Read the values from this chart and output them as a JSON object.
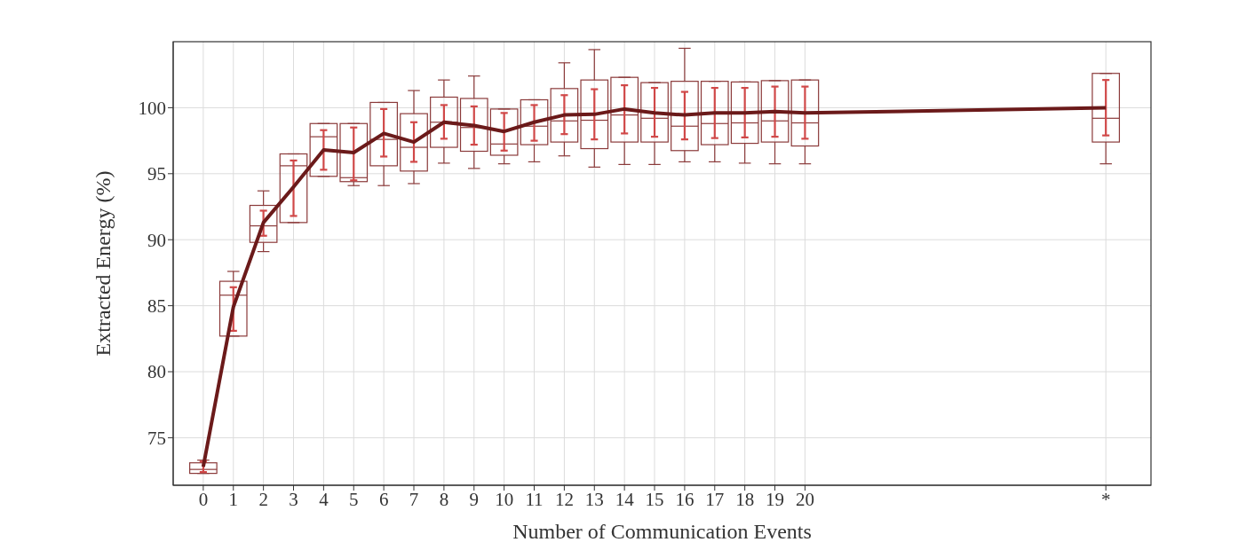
{
  "chart_data": {
    "type": "box",
    "xlabel": "Number of Communication Events",
    "ylabel": "Extracted Energy (%)",
    "x": [
      0,
      1,
      2,
      3,
      4,
      5,
      6,
      7,
      8,
      9,
      10,
      11,
      12,
      13,
      14,
      15,
      16,
      17,
      18,
      19,
      20,
      30
    ],
    "xlim": [
      -1,
      31.5
    ],
    "xticks": [
      0,
      1,
      2,
      3,
      4,
      5,
      6,
      7,
      8,
      9,
      10,
      11,
      12,
      13,
      14,
      15,
      16,
      17,
      18,
      19,
      20,
      {
        "value": 30,
        "label": "*"
      }
    ],
    "ylim": [
      71.4,
      105
    ],
    "yticks": [
      75,
      80,
      85,
      90,
      95,
      100
    ],
    "grid": true,
    "series": [
      {
        "type": "box",
        "color": "#8b3a3a",
        "boxes": [
          {
            "low": 72.3,
            "q1": 72.3,
            "median": 72.6,
            "q3": 73.1,
            "high": 73.3
          },
          {
            "low": 82.7,
            "q1": 82.7,
            "median": 85.8,
            "q3": 86.85,
            "high": 87.6
          },
          {
            "low": 89.1,
            "q1": 89.8,
            "median": 91.05,
            "q3": 92.6,
            "high": 93.7
          },
          {
            "low": 91.3,
            "q1": 91.3,
            "median": 95.6,
            "q3": 96.5,
            "high": 96.5
          },
          {
            "low": 94.8,
            "q1": 94.8,
            "median": 97.8,
            "q3": 98.8,
            "high": 98.8
          },
          {
            "low": 94.1,
            "q1": 94.4,
            "median": 94.7,
            "q3": 98.8,
            "high": 98.8
          },
          {
            "low": 94.1,
            "q1": 95.6,
            "median": 97.6,
            "q3": 100.4,
            "high": 100.4
          },
          {
            "low": 94.25,
            "q1": 95.2,
            "median": 97.0,
            "q3": 99.55,
            "high": 101.3
          },
          {
            "low": 95.8,
            "q1": 97.0,
            "median": 98.9,
            "q3": 100.8,
            "high": 102.1
          },
          {
            "low": 95.4,
            "q1": 96.7,
            "median": 98.5,
            "q3": 100.7,
            "high": 102.4
          },
          {
            "low": 95.75,
            "q1": 96.4,
            "median": 97.25,
            "q3": 99.9,
            "high": 99.9
          },
          {
            "low": 95.9,
            "q1": 97.2,
            "median": 98.6,
            "q3": 100.6,
            "high": 100.6
          },
          {
            "low": 96.35,
            "q1": 97.4,
            "median": 99.0,
            "q3": 101.45,
            "high": 103.4
          },
          {
            "low": 95.5,
            "q1": 96.9,
            "median": 99.05,
            "q3": 102.1,
            "high": 104.4
          },
          {
            "low": 95.7,
            "q1": 97.4,
            "median": 99.45,
            "q3": 102.3,
            "high": 102.3
          },
          {
            "low": 95.7,
            "q1": 97.4,
            "median": 99.2,
            "q3": 101.9,
            "high": 101.9
          },
          {
            "low": 95.9,
            "q1": 96.75,
            "median": 98.6,
            "q3": 102.0,
            "high": 104.5
          },
          {
            "low": 95.9,
            "q1": 97.2,
            "median": 98.8,
            "q3": 102.0,
            "high": 102.0
          },
          {
            "low": 95.8,
            "q1": 97.3,
            "median": 98.85,
            "q3": 101.95,
            "high": 101.95
          },
          {
            "low": 95.75,
            "q1": 97.4,
            "median": 99.0,
            "q3": 102.05,
            "high": 102.05
          },
          {
            "low": 95.75,
            "q1": 97.1,
            "median": 98.85,
            "q3": 102.1,
            "high": 102.1
          },
          {
            "low": 95.75,
            "q1": 97.4,
            "median": 99.2,
            "q3": 102.6,
            "high": 102.6
          }
        ]
      },
      {
        "type": "line",
        "color": "#6b1a1a",
        "values": [
          72.8,
          84.9,
          91.3,
          94.0,
          96.8,
          96.6,
          98.05,
          97.4,
          98.9,
          98.65,
          98.2,
          98.9,
          99.45,
          99.5,
          99.9,
          99.6,
          99.45,
          99.6,
          99.6,
          99.7,
          99.6,
          100.0
        ],
        "errors": [
          [
            72.4,
            73.2
          ],
          [
            83.1,
            86.4
          ],
          [
            90.3,
            92.2
          ],
          [
            91.8,
            96.0
          ],
          [
            95.3,
            98.3
          ],
          [
            94.5,
            98.5
          ],
          [
            96.3,
            99.9
          ],
          [
            95.9,
            98.9
          ],
          [
            97.65,
            100.2
          ],
          [
            97.2,
            100.1
          ],
          [
            96.75,
            99.6
          ],
          [
            97.5,
            100.2
          ],
          [
            98.0,
            100.95
          ],
          [
            97.6,
            101.4
          ],
          [
            98.05,
            101.7
          ],
          [
            97.8,
            101.5
          ],
          [
            97.6,
            101.2
          ],
          [
            97.7,
            101.5
          ],
          [
            97.75,
            101.5
          ],
          [
            97.8,
            101.6
          ],
          [
            97.65,
            101.6
          ],
          [
            97.9,
            102.1
          ]
        ]
      }
    ]
  }
}
